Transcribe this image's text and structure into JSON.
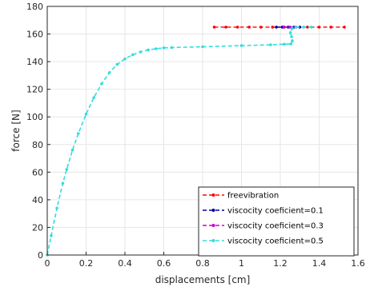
{
  "chart_data": {
    "type": "line",
    "title": "",
    "xlabel": "displacements [cm]",
    "ylabel": "force [N]",
    "xlim": [
      0,
      1.6
    ],
    "ylim": [
      0,
      180
    ],
    "xticks": [
      0,
      0.2,
      0.4,
      0.6,
      0.8,
      1,
      1.2,
      1.4,
      1.6
    ],
    "yticks": [
      0,
      20,
      40,
      60,
      80,
      100,
      120,
      140,
      160,
      180
    ],
    "xtick_labels": [
      "0",
      "0.2",
      "0.4",
      "0.6",
      "0.8",
      "1",
      "1.2",
      "1.4",
      "1.6"
    ],
    "ytick_labels": [
      "0",
      "20",
      "40",
      "60",
      "80",
      "100",
      "120",
      "140",
      "160",
      "180"
    ],
    "grid": true,
    "legend_position": "bottom-right",
    "series": [
      {
        "name": "freevibration",
        "color": "#ff0000",
        "marker": "dot",
        "style": "dashed",
        "x": [
          0.86,
          0.92,
          0.98,
          1.04,
          1.1,
          1.16,
          1.22,
          1.28,
          1.34,
          1.4,
          1.46,
          1.53
        ],
        "y": [
          165,
          165,
          165,
          165,
          165,
          165,
          165,
          165,
          165,
          165,
          165,
          165
        ]
      },
      {
        "name": "viscocity coeficient=0.1",
        "color": "#0000aa",
        "marker": "dot",
        "style": "dashed",
        "x": [
          1.18,
          1.21,
          1.24,
          1.27,
          1.3
        ],
        "y": [
          165,
          165,
          165,
          165,
          165
        ]
      },
      {
        "name": "viscocity coeficient=0.3",
        "color": "#cc00cc",
        "marker": "dot",
        "style": "dashed",
        "x": [
          1.22,
          1.25,
          1.28
        ],
        "y": [
          165,
          165,
          165
        ]
      },
      {
        "name": "viscocity coeficient=0.5",
        "color": "#33dddd",
        "marker": "dot",
        "style": "dashed",
        "x": [
          0,
          0.02,
          0.05,
          0.08,
          0.1,
          0.13,
          0.16,
          0.2,
          0.24,
          0.28,
          0.32,
          0.36,
          0.4,
          0.44,
          0.48,
          0.52,
          0.56,
          0.6,
          0.64,
          0.8,
          1.0,
          1.15,
          1.22,
          1.255,
          1.262,
          1.258,
          1.252,
          1.26,
          1.28,
          1.32,
          1.36
        ],
        "y": [
          0,
          14,
          34,
          52,
          62,
          76,
          88,
          102,
          114,
          124,
          132,
          138,
          142,
          145,
          147,
          148.5,
          149.3,
          150,
          150.2,
          150.8,
          151.6,
          152.2,
          152.6,
          152.8,
          155,
          158,
          161,
          164,
          165,
          165,
          165
        ]
      }
    ]
  }
}
